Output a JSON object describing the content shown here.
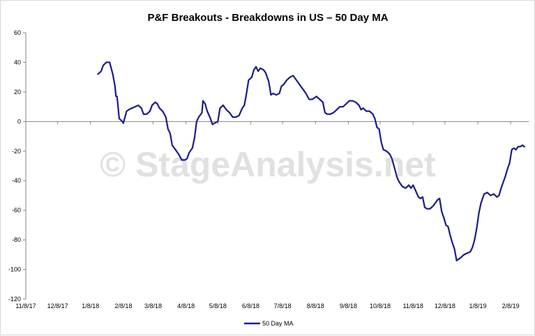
{
  "chart_data": {
    "type": "line",
    "title": "P&F Breakouts - Breakdowns in US – 50 Day MA",
    "xlabel": "",
    "ylabel": "",
    "ylim": [
      -120,
      60
    ],
    "yticks": [
      60,
      40,
      20,
      0,
      -20,
      -40,
      -60,
      -80,
      -100,
      -120
    ],
    "x_tick_labels": [
      "11/8/17",
      "12/8/17",
      "1/8/18",
      "2/8/18",
      "3/8/18",
      "4/8/18",
      "5/8/18",
      "6/8/18",
      "7/8/18",
      "8/8/18",
      "9/8/18",
      "10/8/18",
      "11/8/18",
      "12/8/18",
      "1/8/19",
      "2/8/19"
    ],
    "xlim": [
      "2017-11-08",
      "2019-02-25"
    ],
    "grid": false,
    "legend": "bottom",
    "series": [
      {
        "name": "50 Day MA",
        "color": "#1f1f8c",
        "points": [
          [
            "2018-01-15",
            32
          ],
          [
            "2018-01-18",
            34
          ],
          [
            "2018-01-20",
            38
          ],
          [
            "2018-01-23",
            40
          ],
          [
            "2018-01-26",
            40
          ],
          [
            "2018-01-29",
            32
          ],
          [
            "2018-01-31",
            24
          ],
          [
            "2018-02-01",
            17
          ],
          [
            "2018-02-02",
            17
          ],
          [
            "2018-02-04",
            2
          ],
          [
            "2018-02-07",
            0
          ],
          [
            "2018-02-08",
            -1
          ],
          [
            "2018-02-11",
            7
          ],
          [
            "2018-02-13",
            8
          ],
          [
            "2018-02-16",
            9
          ],
          [
            "2018-02-19",
            10
          ],
          [
            "2018-02-22",
            11
          ],
          [
            "2018-02-25",
            9
          ],
          [
            "2018-02-27",
            5
          ],
          [
            "2018-03-02",
            5
          ],
          [
            "2018-03-05",
            7
          ],
          [
            "2018-03-07",
            11
          ],
          [
            "2018-03-10",
            13
          ],
          [
            "2018-03-12",
            12
          ],
          [
            "2018-03-14",
            9
          ],
          [
            "2018-03-17",
            7
          ],
          [
            "2018-03-20",
            3
          ],
          [
            "2018-03-22",
            -5
          ],
          [
            "2018-03-24",
            -8
          ],
          [
            "2018-03-26",
            -16
          ],
          [
            "2018-03-29",
            -19
          ],
          [
            "2018-04-01",
            -22
          ],
          [
            "2018-04-04",
            -26
          ],
          [
            "2018-04-07",
            -26
          ],
          [
            "2018-04-09",
            -25
          ],
          [
            "2018-04-11",
            -21
          ],
          [
            "2018-04-14",
            -18
          ],
          [
            "2018-04-16",
            -11
          ],
          [
            "2018-04-18",
            0
          ],
          [
            "2018-04-20",
            3
          ],
          [
            "2018-04-23",
            6
          ],
          [
            "2018-04-24",
            14
          ],
          [
            "2018-04-26",
            12
          ],
          [
            "2018-04-28",
            7
          ],
          [
            "2018-05-01",
            2
          ],
          [
            "2018-05-03",
            -2
          ],
          [
            "2018-05-05",
            -1
          ],
          [
            "2018-05-08",
            0
          ],
          [
            "2018-05-10",
            9
          ],
          [
            "2018-05-13",
            11
          ],
          [
            "2018-05-16",
            8
          ],
          [
            "2018-05-19",
            6
          ],
          [
            "2018-05-22",
            3
          ],
          [
            "2018-05-25",
            3
          ],
          [
            "2018-05-28",
            4
          ],
          [
            "2018-05-31",
            9
          ],
          [
            "2018-06-02",
            11
          ],
          [
            "2018-06-04",
            19
          ],
          [
            "2018-06-06",
            28
          ],
          [
            "2018-06-09",
            30
          ],
          [
            "2018-06-11",
            35
          ],
          [
            "2018-06-13",
            37
          ],
          [
            "2018-06-15",
            34
          ],
          [
            "2018-06-17",
            36
          ],
          [
            "2018-06-20",
            35
          ],
          [
            "2018-06-22",
            33
          ],
          [
            "2018-06-25",
            27
          ],
          [
            "2018-06-27",
            18
          ],
          [
            "2018-06-29",
            19
          ],
          [
            "2018-07-02",
            18
          ],
          [
            "2018-07-05",
            19
          ],
          [
            "2018-07-07",
            24
          ],
          [
            "2018-07-09",
            25
          ],
          [
            "2018-07-12",
            28
          ],
          [
            "2018-07-15",
            30
          ],
          [
            "2018-07-18",
            31
          ],
          [
            "2018-07-21",
            28
          ],
          [
            "2018-07-24",
            25
          ],
          [
            "2018-07-27",
            22
          ],
          [
            "2018-07-30",
            19
          ],
          [
            "2018-08-02",
            15
          ],
          [
            "2018-08-05",
            15
          ],
          [
            "2018-08-09",
            17
          ],
          [
            "2018-08-12",
            15
          ],
          [
            "2018-08-15",
            13
          ],
          [
            "2018-08-17",
            6
          ],
          [
            "2018-08-19",
            5
          ],
          [
            "2018-08-22",
            5
          ],
          [
            "2018-08-25",
            6
          ],
          [
            "2018-08-28",
            8
          ],
          [
            "2018-08-31",
            10
          ],
          [
            "2018-09-03",
            10
          ],
          [
            "2018-09-06",
            12
          ],
          [
            "2018-09-09",
            14
          ],
          [
            "2018-09-12",
            14
          ],
          [
            "2018-09-15",
            13
          ],
          [
            "2018-09-18",
            11
          ],
          [
            "2018-09-20",
            8
          ],
          [
            "2018-09-22",
            9
          ],
          [
            "2018-09-25",
            7
          ],
          [
            "2018-09-28",
            7
          ],
          [
            "2018-10-01",
            5
          ],
          [
            "2018-10-03",
            2
          ],
          [
            "2018-10-05",
            -4
          ],
          [
            "2018-10-07",
            -5
          ],
          [
            "2018-10-09",
            -14
          ],
          [
            "2018-10-11",
            -19
          ],
          [
            "2018-10-14",
            -20
          ],
          [
            "2018-10-17",
            -22
          ],
          [
            "2018-10-19",
            -25
          ],
          [
            "2018-10-21",
            -30
          ],
          [
            "2018-10-24",
            -38
          ],
          [
            "2018-10-26",
            -41
          ],
          [
            "2018-10-29",
            -44
          ],
          [
            "2018-11-01",
            -45
          ],
          [
            "2018-11-04",
            -43
          ],
          [
            "2018-11-06",
            -45
          ],
          [
            "2018-11-08",
            -43
          ],
          [
            "2018-11-10",
            -46
          ],
          [
            "2018-11-13",
            -51
          ],
          [
            "2018-11-15",
            -52
          ],
          [
            "2018-11-17",
            -51
          ],
          [
            "2018-11-19",
            -58
          ],
          [
            "2018-11-21",
            -59
          ],
          [
            "2018-11-24",
            -59
          ],
          [
            "2018-11-27",
            -57
          ],
          [
            "2018-11-29",
            -55
          ],
          [
            "2018-12-01",
            -53
          ],
          [
            "2018-12-03",
            -52
          ],
          [
            "2018-12-05",
            -61
          ],
          [
            "2018-12-07",
            -65
          ],
          [
            "2018-12-09",
            -70
          ],
          [
            "2018-12-11",
            -71
          ],
          [
            "2018-12-13",
            -77
          ],
          [
            "2018-12-15",
            -82
          ],
          [
            "2018-12-17",
            -86
          ],
          [
            "2018-12-19",
            -94
          ],
          [
            "2018-12-21",
            -93
          ],
          [
            "2018-12-23",
            -92
          ],
          [
            "2018-12-26",
            -90
          ],
          [
            "2018-12-29",
            -89
          ],
          [
            "2019-01-01",
            -88
          ],
          [
            "2019-01-03",
            -85
          ],
          [
            "2019-01-05",
            -80
          ],
          [
            "2019-01-07",
            -72
          ],
          [
            "2019-01-09",
            -62
          ],
          [
            "2019-01-11",
            -55
          ],
          [
            "2019-01-14",
            -49
          ],
          [
            "2019-01-17",
            -48
          ],
          [
            "2019-01-20",
            -50
          ],
          [
            "2019-01-23",
            -49
          ],
          [
            "2019-01-26",
            -51
          ],
          [
            "2019-01-28",
            -50
          ],
          [
            "2019-01-30",
            -45
          ],
          [
            "2019-02-01",
            -41
          ],
          [
            "2019-02-03",
            -37
          ],
          [
            "2019-02-05",
            -32
          ],
          [
            "2019-02-07",
            -28
          ],
          [
            "2019-02-09",
            -19
          ],
          [
            "2019-02-11",
            -18
          ],
          [
            "2019-02-13",
            -19
          ],
          [
            "2019-02-15",
            -17
          ],
          [
            "2019-02-17",
            -17
          ],
          [
            "2019-02-19",
            -16
          ],
          [
            "2019-02-21",
            -17
          ]
        ]
      }
    ]
  },
  "watermark": {
    "text": "© StageAnalysis.net",
    "color": "#c8c8c8"
  }
}
